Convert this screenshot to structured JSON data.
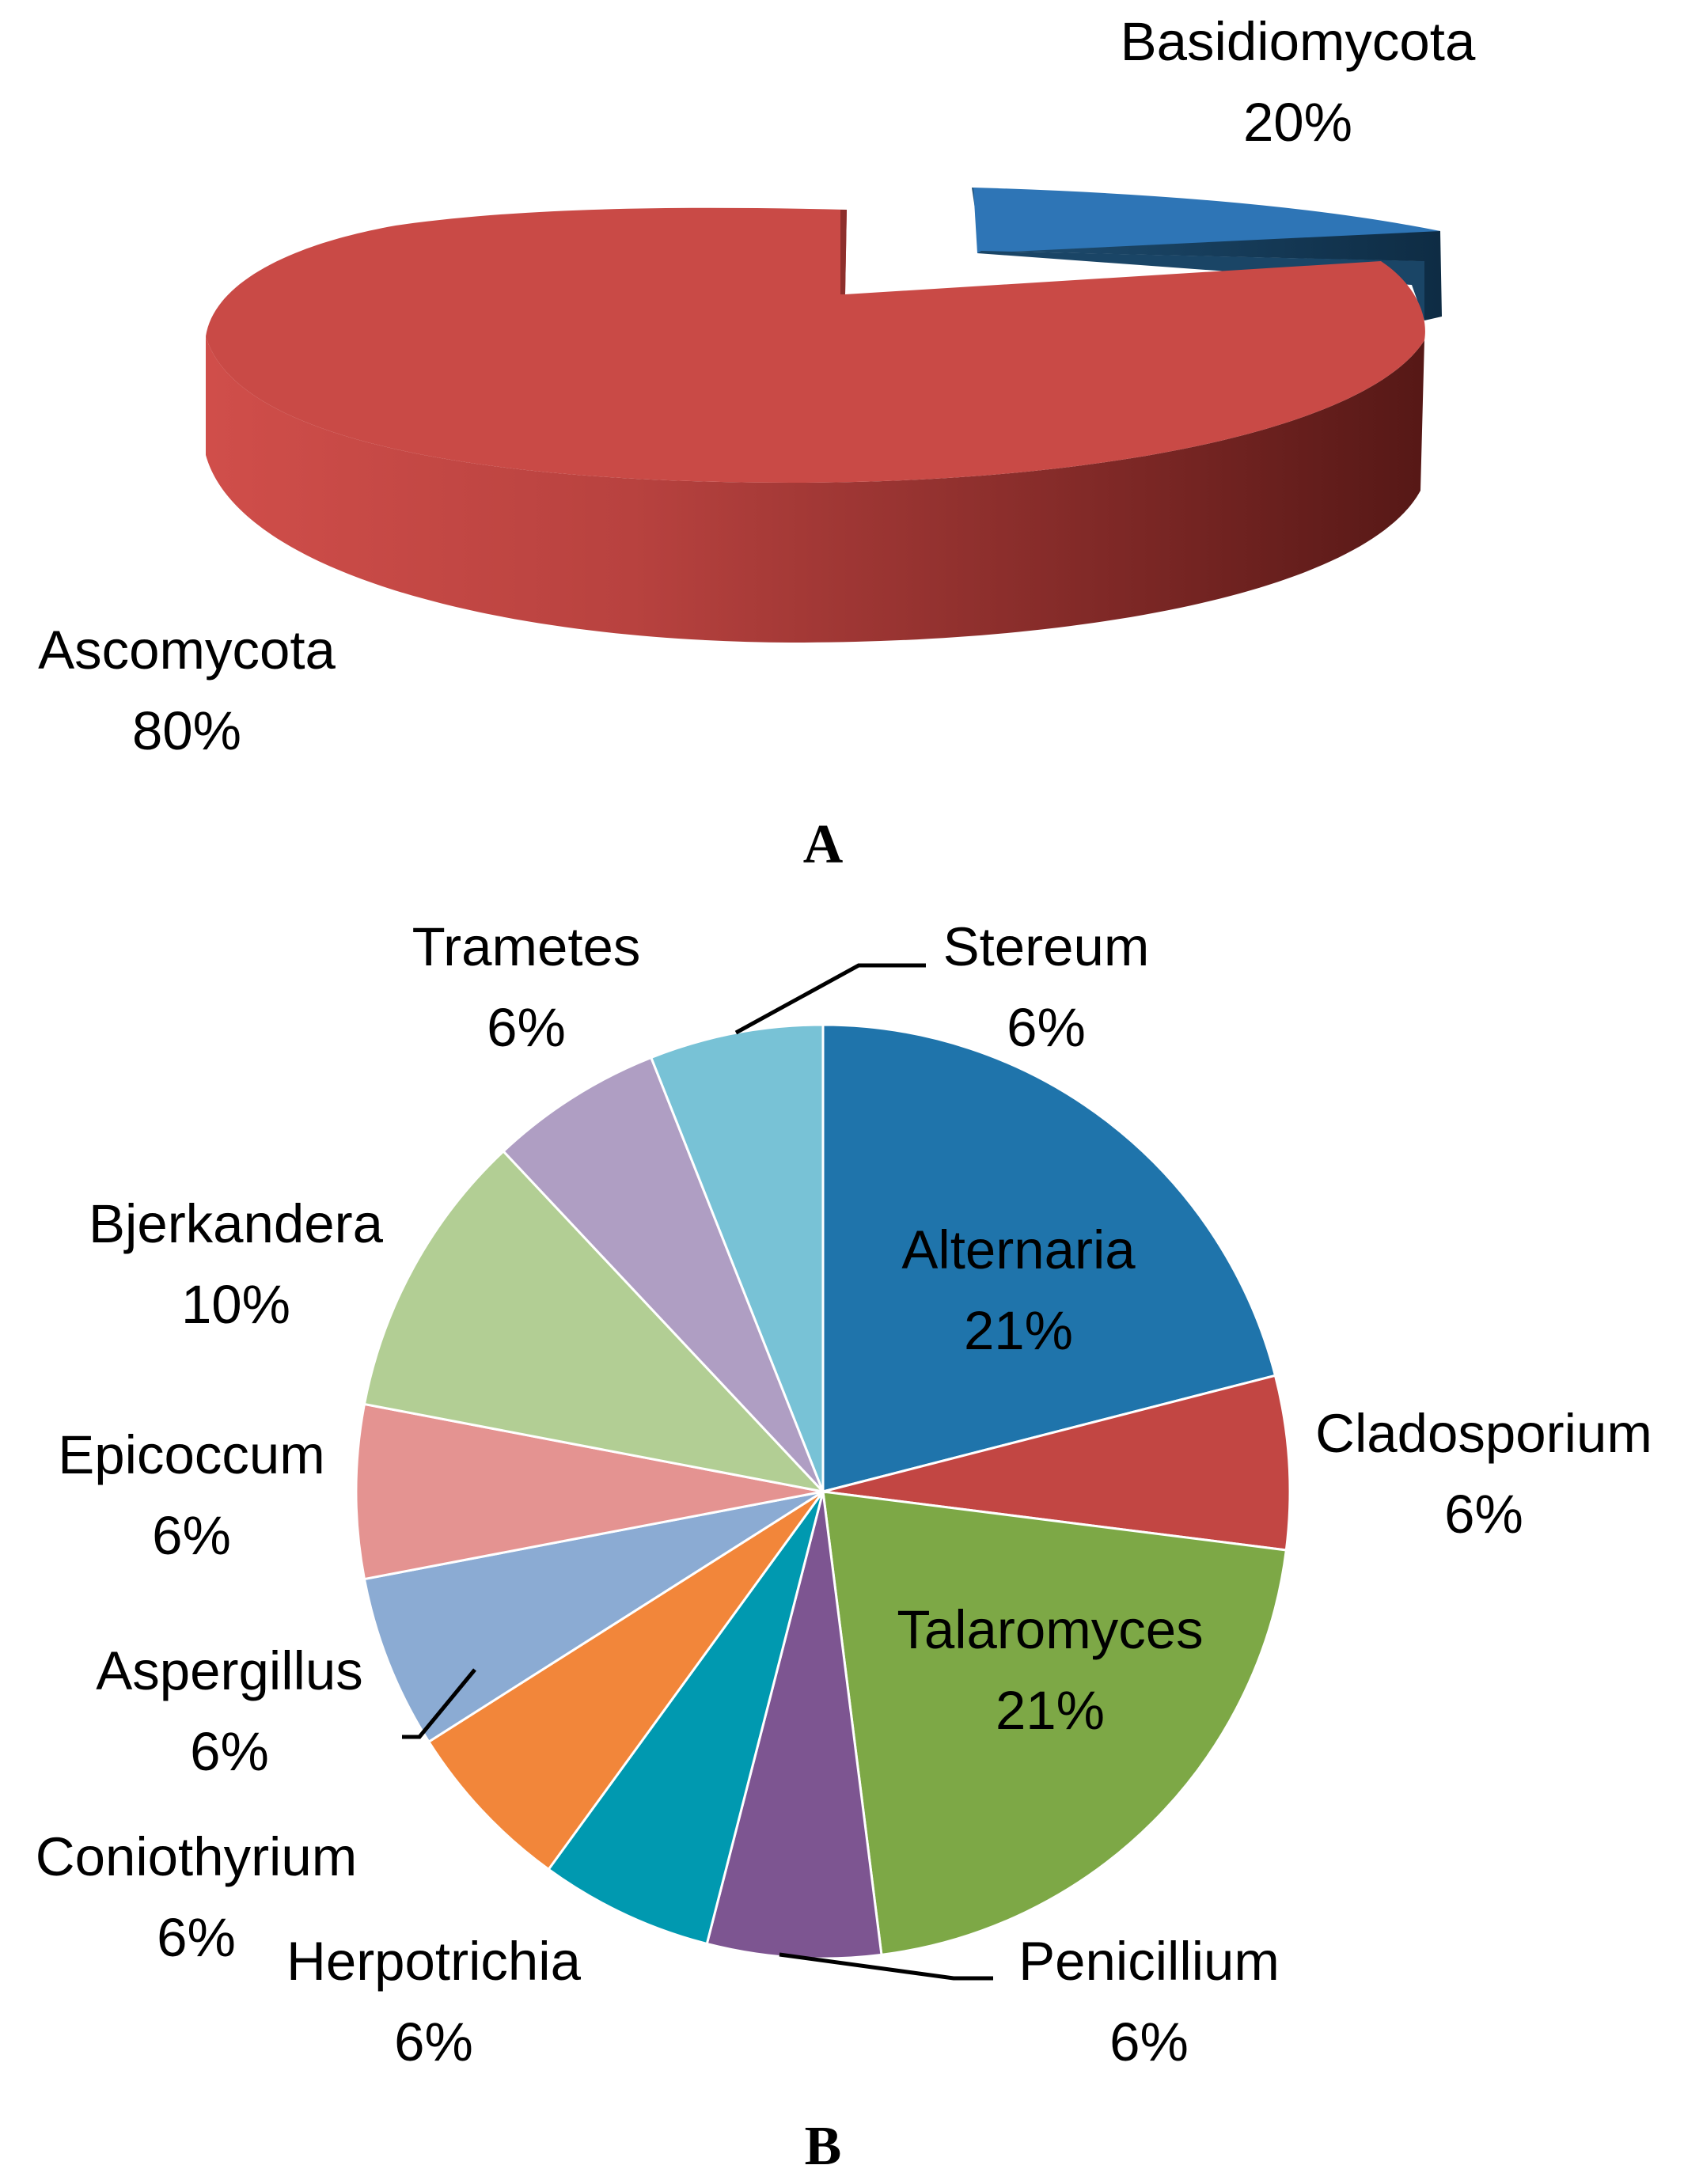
{
  "chart_data": [
    {
      "type": "pie",
      "panel_label": "A",
      "style": "3d-exploded",
      "slices": [
        {
          "name": "Basidiomycota",
          "value": 20,
          "label": "20%",
          "color": "#2E75B6"
        },
        {
          "name": "Ascomycota",
          "value": 80,
          "label": "80%",
          "color": "#C94A46"
        }
      ]
    },
    {
      "type": "pie",
      "panel_label": "B",
      "start_angle_deg": 0,
      "direction": "clockwise",
      "slices": [
        {
          "name": "Alternaria",
          "value": 21,
          "label": "21%",
          "color": "#1F74AB"
        },
        {
          "name": "Cladosporium",
          "value": 6,
          "label": "6%",
          "color": "#C24643"
        },
        {
          "name": "Talaromyces",
          "value": 21,
          "label": "21%",
          "color": "#7DA846"
        },
        {
          "name": "Penicillium",
          "value": 6,
          "label": "6%",
          "color": "#7D5591"
        },
        {
          "name": "Herpotrichia",
          "value": 6,
          "label": "6%",
          "color": "#0099B0"
        },
        {
          "name": "Coniothyrium",
          "value": 6,
          "label": "6%",
          "color": "#F2863A"
        },
        {
          "name": "Aspergillus",
          "value": 6,
          "label": "6%",
          "color": "#8BABD3"
        },
        {
          "name": "Epicoccum",
          "value": 6,
          "label": "6%",
          "color": "#E49391"
        },
        {
          "name": "Bjerkandera",
          "value": 10,
          "label": "10%",
          "color": "#B2CE94"
        },
        {
          "name": "Trametes",
          "value": 6,
          "label": "6%",
          "color": "#AF9EC3"
        },
        {
          "name": "Stereum",
          "value": 6,
          "label": "6%",
          "color": "#78C2D6"
        }
      ]
    }
  ]
}
